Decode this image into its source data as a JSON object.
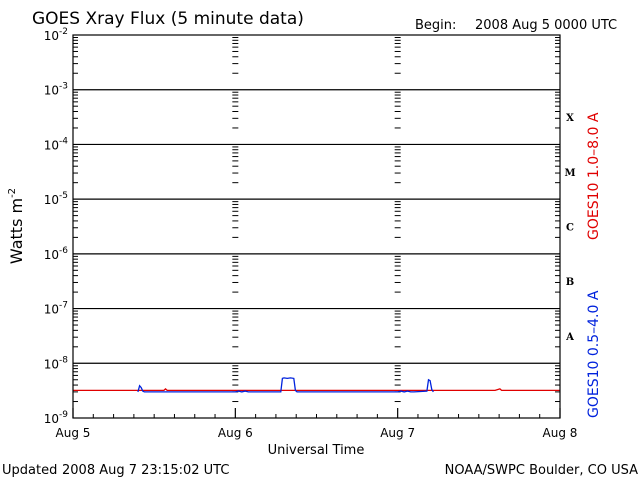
{
  "header": {
    "title": "GOES Xray Flux (5 minute data)",
    "begin_label": "Begin:",
    "begin_value": "2008 Aug 5 0000 UTC"
  },
  "footer": {
    "updated_label": "Updated",
    "updated_value": "2008 Aug  7 23:15:02 UTC",
    "credit": "NOAA/SWPC Boulder, CO USA"
  },
  "colors": {
    "long_channel": "#e00000",
    "short_channel": "#0022dd",
    "axes": "#000000",
    "background": "#ffffff"
  },
  "chart_data": {
    "type": "line",
    "title": "GOES Xray Flux (5 minute data)",
    "xlabel": "Universal Time",
    "ylabel_base": "Watts m",
    "ylabel_exp": "-2",
    "yscale": "log",
    "ylim": [
      1e-09,
      0.01
    ],
    "xlim": [
      0,
      3
    ],
    "x_units": "days since 2008 Aug 5 0000 UTC",
    "x_ticks": [
      {
        "value": 0,
        "label": "Aug 5"
      },
      {
        "value": 1,
        "label": "Aug 6"
      },
      {
        "value": 2,
        "label": "Aug 7"
      },
      {
        "value": 3,
        "label": "Aug 8"
      }
    ],
    "y_ticks": [
      {
        "value": 0.01,
        "base": "10",
        "exp": "-2"
      },
      {
        "value": 0.001,
        "base": "10",
        "exp": "-3"
      },
      {
        "value": 0.0001,
        "base": "10",
        "exp": "-4"
      },
      {
        "value": 1e-05,
        "base": "10",
        "exp": "-5"
      },
      {
        "value": 1e-06,
        "base": "10",
        "exp": "-6"
      },
      {
        "value": 1e-07,
        "base": "10",
        "exp": "-7"
      },
      {
        "value": 1e-08,
        "base": "10",
        "exp": "-8"
      },
      {
        "value": 1e-09,
        "base": "10",
        "exp": "-9"
      }
    ],
    "grid": "horizontal at each decade",
    "flare_classes": [
      {
        "label": "X",
        "range": [
          0.0001,
          0.001
        ]
      },
      {
        "label": "M",
        "range": [
          1e-05,
          0.0001
        ]
      },
      {
        "label": "C",
        "range": [
          1e-06,
          1e-05
        ]
      },
      {
        "label": "B",
        "range": [
          1e-07,
          1e-06
        ]
      },
      {
        "label": "A",
        "range": [
          1e-08,
          1e-07
        ]
      }
    ],
    "series": [
      {
        "name": "GOES10 1.0–8.0 A",
        "color": "#e00000",
        "x": [
          0,
          0.56,
          0.57,
          0.58,
          1.0,
          1.3,
          1.45,
          1.5,
          2.0,
          2.3,
          2.6,
          2.63,
          2.64,
          3.0
        ],
        "y": [
          3.2e-09,
          3.2e-09,
          3.4e-09,
          3.2e-09,
          3.2e-09,
          3.2e-09,
          3.2e-09,
          3.2e-09,
          3.2e-09,
          3.2e-09,
          3.2e-09,
          3.4e-09,
          3.2e-09,
          3.2e-09
        ]
      },
      {
        "name": "GOES10 0.5–4.0 A",
        "color": "#0022dd",
        "x": [
          0.4,
          0.41,
          0.42,
          0.43,
          0.44,
          1.0,
          1.02,
          1.04,
          1.06,
          1.08,
          1.1,
          1.28,
          1.29,
          1.3,
          1.32,
          1.34,
          1.36,
          1.37,
          1.38,
          2.0,
          2.02,
          2.04,
          2.06,
          2.08,
          2.1,
          2.18,
          2.19,
          2.2,
          2.21,
          2.22
        ],
        "y": [
          3e-09,
          3.9e-09,
          3.6e-09,
          3.1e-09,
          3e-09,
          3e-09,
          3.1e-09,
          3e-09,
          3.1e-09,
          3e-09,
          3e-09,
          3e-09,
          5.3e-09,
          5.4e-09,
          5.3e-09,
          5.4e-09,
          5.3e-09,
          3.2e-09,
          3e-09,
          3e-09,
          3.1e-09,
          3e-09,
          3.1e-09,
          3e-09,
          3e-09,
          3.1e-09,
          5e-09,
          4.8e-09,
          3.3e-09,
          3e-09
        ]
      }
    ]
  }
}
